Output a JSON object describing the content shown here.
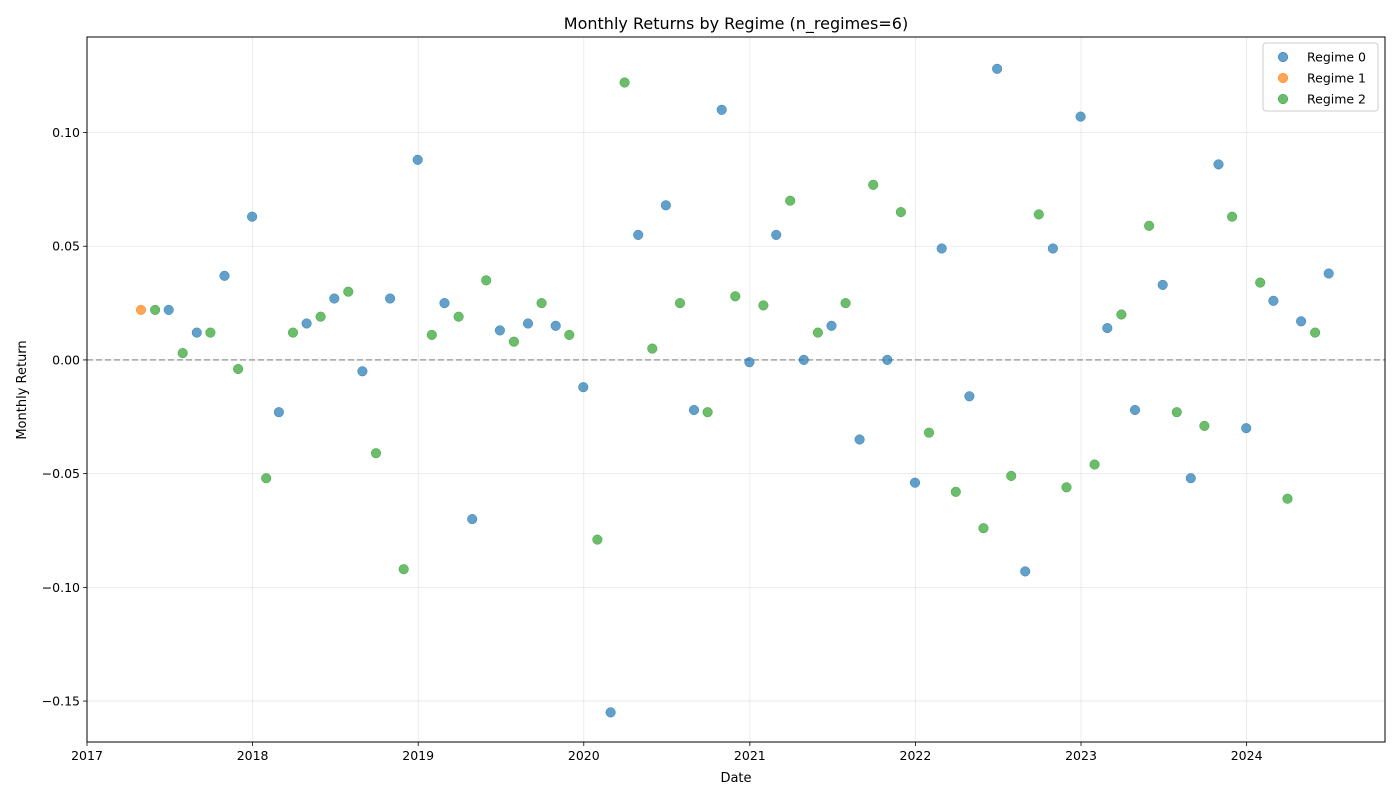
{
  "chart_data": {
    "type": "scatter",
    "title": "Monthly Returns by Regime (n_regimes=6)",
    "xlabel": "Date",
    "ylabel": "Monthly Return",
    "x_ticks": [
      "2017",
      "2018",
      "2019",
      "2020",
      "2021",
      "2022",
      "2023",
      "2024"
    ],
    "y_ticks": [
      "−0.15",
      "−0.10",
      "−0.05",
      "0.00",
      "0.05",
      "0.10"
    ],
    "xlim": [
      "2017-01-01",
      "2024-11-01"
    ],
    "ylim": [
      -0.168,
      0.142
    ],
    "grid": true,
    "reference_line": 0,
    "legend_position": "top-right",
    "series": [
      {
        "name": "Regime 0",
        "color": "#1f77b4",
        "points": [
          {
            "x": "2017-06-30",
            "y": 0.022
          },
          {
            "x": "2017-08-31",
            "y": 0.012
          },
          {
            "x": "2017-10-31",
            "y": 0.037
          },
          {
            "x": "2017-12-31",
            "y": 0.063
          },
          {
            "x": "2018-02-28",
            "y": -0.023
          },
          {
            "x": "2018-04-30",
            "y": 0.016
          },
          {
            "x": "2018-06-30",
            "y": 0.027
          },
          {
            "x": "2018-08-31",
            "y": -0.005
          },
          {
            "x": "2018-10-31",
            "y": 0.027
          },
          {
            "x": "2018-12-31",
            "y": 0.088
          },
          {
            "x": "2019-02-28",
            "y": 0.025
          },
          {
            "x": "2019-04-30",
            "y": -0.07
          },
          {
            "x": "2019-06-30",
            "y": 0.013
          },
          {
            "x": "2019-08-31",
            "y": 0.016
          },
          {
            "x": "2019-10-31",
            "y": 0.015
          },
          {
            "x": "2019-12-31",
            "y": -0.012
          },
          {
            "x": "2020-02-29",
            "y": -0.155
          },
          {
            "x": "2020-04-30",
            "y": 0.055
          },
          {
            "x": "2020-06-30",
            "y": 0.068
          },
          {
            "x": "2020-08-31",
            "y": -0.022
          },
          {
            "x": "2020-10-31",
            "y": 0.11
          },
          {
            "x": "2020-12-31",
            "y": -0.001
          },
          {
            "x": "2021-02-28",
            "y": 0.055
          },
          {
            "x": "2021-04-30",
            "y": 0.0
          },
          {
            "x": "2021-06-30",
            "y": 0.015
          },
          {
            "x": "2021-08-31",
            "y": -0.035
          },
          {
            "x": "2021-10-31",
            "y": 0.0
          },
          {
            "x": "2021-12-31",
            "y": -0.054
          },
          {
            "x": "2022-02-28",
            "y": 0.049
          },
          {
            "x": "2022-04-30",
            "y": -0.016
          },
          {
            "x": "2022-06-30",
            "y": 0.128
          },
          {
            "x": "2022-08-31",
            "y": -0.093
          },
          {
            "x": "2022-10-31",
            "y": 0.049
          },
          {
            "x": "2022-12-31",
            "y": 0.107
          },
          {
            "x": "2023-02-28",
            "y": 0.014
          },
          {
            "x": "2023-04-30",
            "y": -0.022
          },
          {
            "x": "2023-06-30",
            "y": 0.033
          },
          {
            "x": "2023-08-31",
            "y": -0.052
          },
          {
            "x": "2023-10-31",
            "y": 0.086
          },
          {
            "x": "2023-12-31",
            "y": -0.03
          },
          {
            "x": "2024-02-29",
            "y": 0.026
          },
          {
            "x": "2024-04-30",
            "y": 0.017
          },
          {
            "x": "2024-06-30",
            "y": 0.038
          }
        ]
      },
      {
        "name": "Regime 1",
        "color": "#ff7f0e",
        "points": [
          {
            "x": "2017-04-30",
            "y": 0.022
          }
        ]
      },
      {
        "name": "Regime 2",
        "color": "#2ca02c",
        "points": [
          {
            "x": "2017-05-31",
            "y": 0.022
          },
          {
            "x": "2017-07-31",
            "y": 0.003
          },
          {
            "x": "2017-09-30",
            "y": 0.012
          },
          {
            "x": "2017-11-30",
            "y": -0.004
          },
          {
            "x": "2018-01-31",
            "y": -0.052
          },
          {
            "x": "2018-03-31",
            "y": 0.012
          },
          {
            "x": "2018-05-31",
            "y": 0.019
          },
          {
            "x": "2018-07-31",
            "y": 0.03
          },
          {
            "x": "2018-09-30",
            "y": -0.041
          },
          {
            "x": "2018-11-30",
            "y": -0.092
          },
          {
            "x": "2019-01-31",
            "y": 0.011
          },
          {
            "x": "2019-03-31",
            "y": 0.019
          },
          {
            "x": "2019-05-31",
            "y": 0.035
          },
          {
            "x": "2019-07-31",
            "y": 0.008
          },
          {
            "x": "2019-09-30",
            "y": 0.025
          },
          {
            "x": "2019-11-30",
            "y": 0.011
          },
          {
            "x": "2020-01-31",
            "y": -0.079
          },
          {
            "x": "2020-03-31",
            "y": 0.122
          },
          {
            "x": "2020-05-31",
            "y": 0.005
          },
          {
            "x": "2020-07-31",
            "y": 0.025
          },
          {
            "x": "2020-09-30",
            "y": -0.023
          },
          {
            "x": "2020-11-30",
            "y": 0.028
          },
          {
            "x": "2021-01-31",
            "y": 0.024
          },
          {
            "x": "2021-03-31",
            "y": 0.07
          },
          {
            "x": "2021-05-31",
            "y": 0.012
          },
          {
            "x": "2021-07-31",
            "y": 0.025
          },
          {
            "x": "2021-09-30",
            "y": 0.077
          },
          {
            "x": "2021-11-30",
            "y": 0.065
          },
          {
            "x": "2022-01-31",
            "y": -0.032
          },
          {
            "x": "2022-03-31",
            "y": -0.058
          },
          {
            "x": "2022-05-31",
            "y": -0.074
          },
          {
            "x": "2022-07-31",
            "y": -0.051
          },
          {
            "x": "2022-09-30",
            "y": 0.064
          },
          {
            "x": "2022-11-30",
            "y": -0.056
          },
          {
            "x": "2023-01-31",
            "y": -0.046
          },
          {
            "x": "2023-03-31",
            "y": 0.02
          },
          {
            "x": "2023-05-31",
            "y": 0.059
          },
          {
            "x": "2023-07-31",
            "y": -0.023
          },
          {
            "x": "2023-09-30",
            "y": -0.029
          },
          {
            "x": "2023-11-30",
            "y": 0.063
          },
          {
            "x": "2024-01-31",
            "y": 0.034
          },
          {
            "x": "2024-03-31",
            "y": -0.061
          },
          {
            "x": "2024-05-31",
            "y": 0.012
          }
        ]
      }
    ]
  }
}
